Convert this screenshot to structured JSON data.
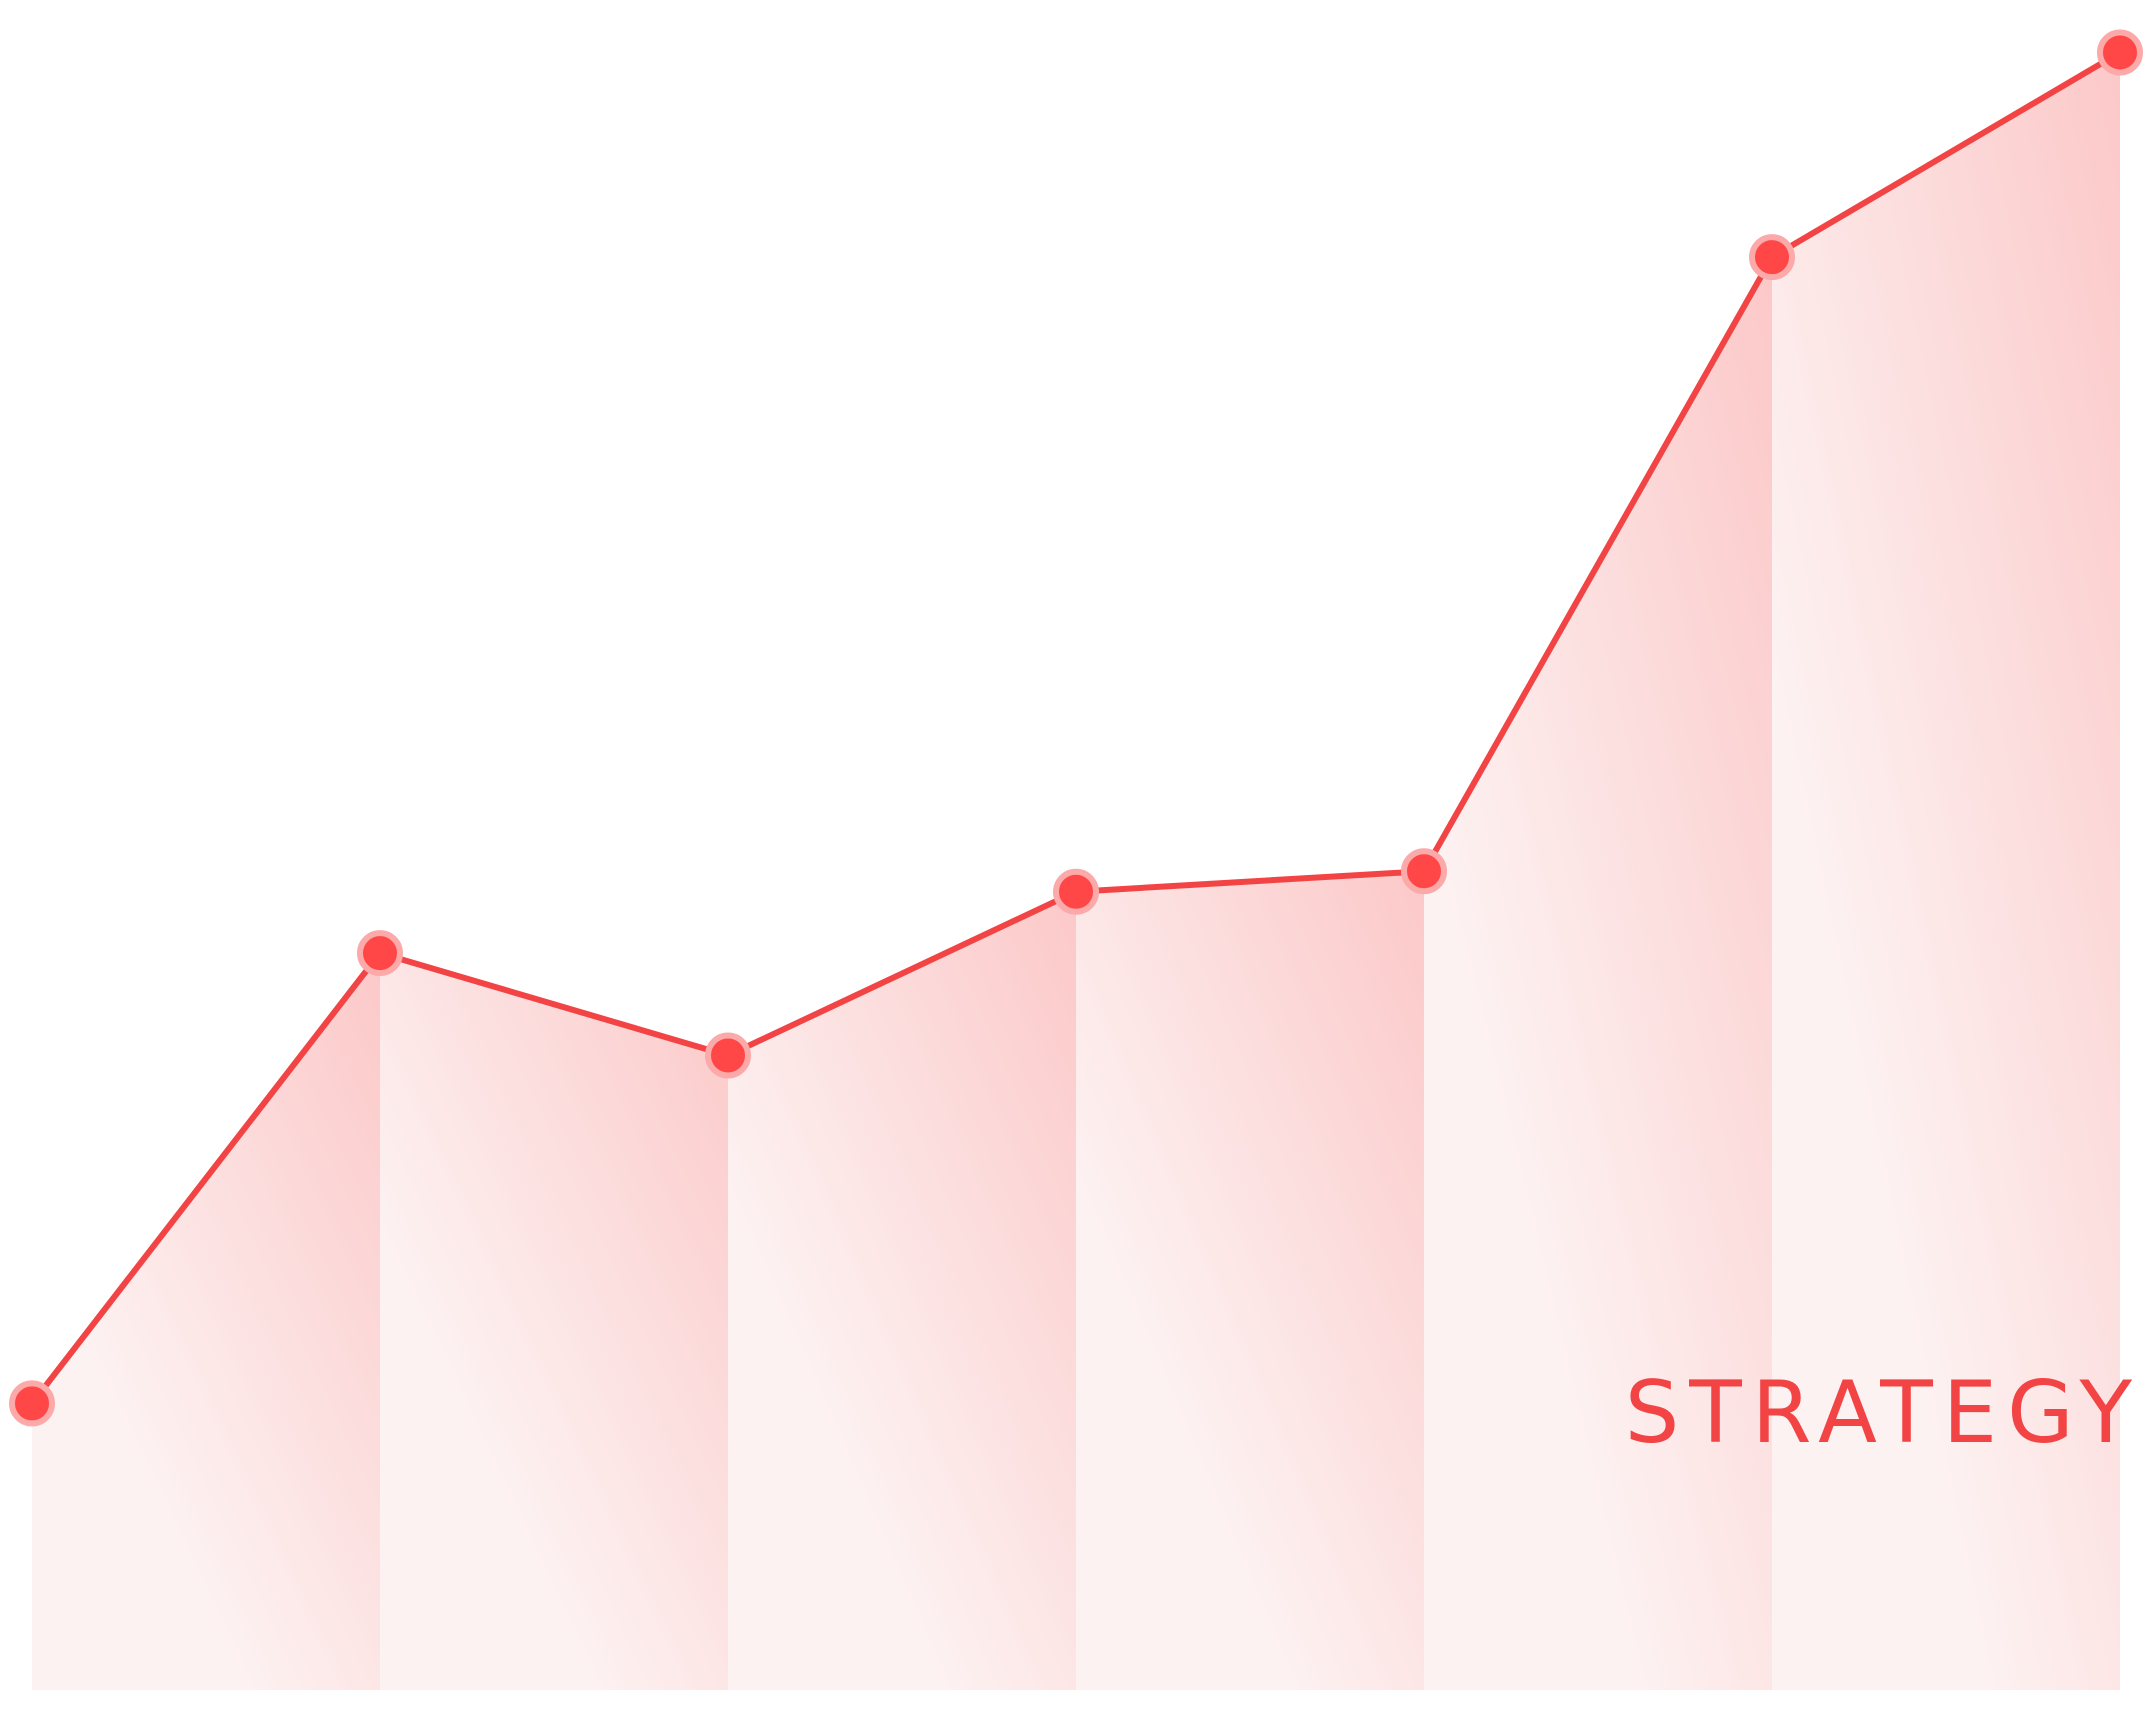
{
  "chart_data": {
    "type": "area",
    "label": "STRATEGY",
    "x": [
      1,
      2,
      3,
      4,
      5,
      6,
      7
    ],
    "series": [
      {
        "values": [
          14,
          36,
          31,
          39,
          40,
          70,
          80
        ]
      }
    ],
    "xlim": [
      1,
      7
    ],
    "ylim": [
      0,
      81
    ],
    "grid": false,
    "legend": "none",
    "colors": {
      "line": "#f24444",
      "point": "#ff4747",
      "point_stroke": "#fca9a9",
      "fill_top": "#fcc8c8",
      "fill_bottom": "#fdf2f2",
      "label": "#f24444"
    }
  }
}
